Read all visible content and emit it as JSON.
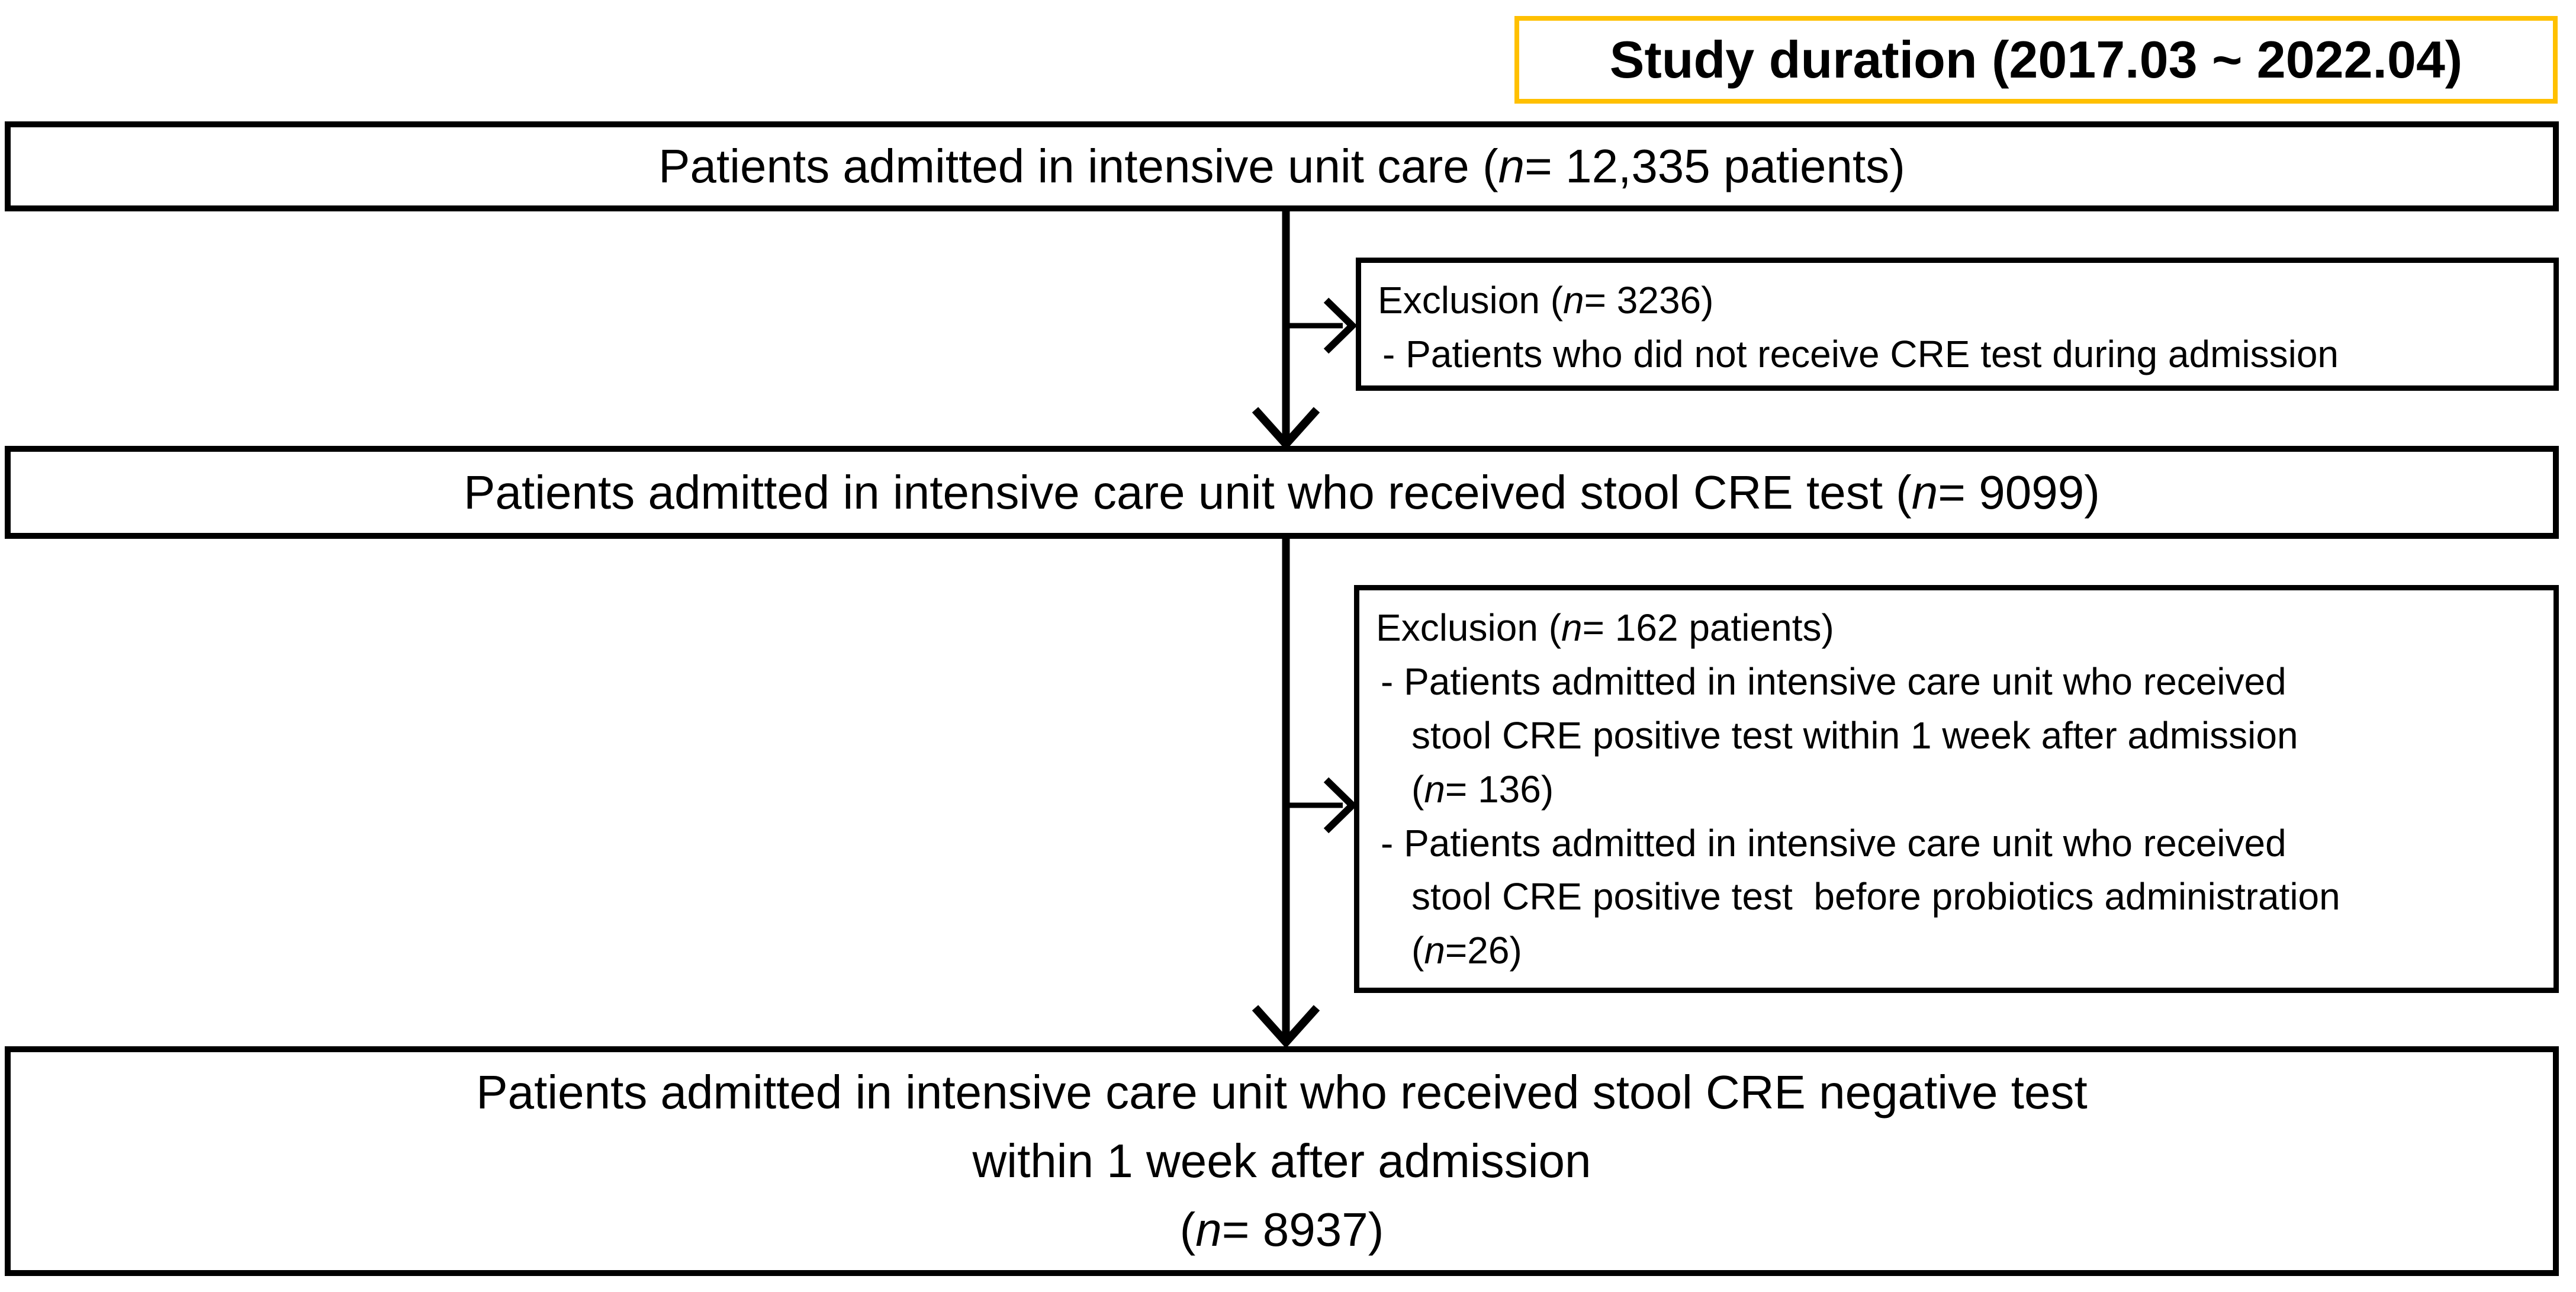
{
  "palette": {
    "accent_gold": "#FFC000",
    "ink_black": "#000000",
    "background": "#FFFFFF"
  },
  "duration_box": {
    "label": [
      {
        "t": "Study duration (2017.03 ~ 2022.04)",
        "b": true
      }
    ]
  },
  "box_admitted": {
    "label": [
      {
        "t": "Patients admitted in intensive unit care ("
      },
      {
        "t": "n",
        "i": true
      },
      {
        "t": "= 12,335 patients)"
      }
    ]
  },
  "exclusion_1": {
    "title": [
      {
        "t": "Exclusion ("
      },
      {
        "t": "n",
        "i": true
      },
      {
        "t": "= 3236)"
      }
    ],
    "items": [
      [
        {
          "t": "- Patients who did not receive CRE test during admission"
        }
      ]
    ]
  },
  "box_cre_test": {
    "label": [
      {
        "t": "Patients admitted in intensive care unit who received stool CRE test ("
      },
      {
        "t": "n",
        "i": true
      },
      {
        "t": "= 9099)"
      }
    ]
  },
  "exclusion_2": {
    "title": [
      {
        "t": "Exclusion ("
      },
      {
        "t": "n",
        "i": true
      },
      {
        "t": "= 162 patients)"
      }
    ],
    "items": [
      [
        {
          "t": "- Patients admitted in intensive care unit who received"
        },
        {
          "br": true
        },
        {
          "t": "stool CRE positive test within 1 week after admission"
        },
        {
          "br": true
        },
        {
          "t": "("
        },
        {
          "t": "n",
          "i": true
        },
        {
          "t": "= 136)"
        }
      ],
      [
        {
          "t": "- Patients admitted in intensive care unit who received"
        },
        {
          "br": true
        },
        {
          "t": "stool CRE positive test  before probiotics administration"
        },
        {
          "br": true
        },
        {
          "t": "("
        },
        {
          "t": "n",
          "i": true
        },
        {
          "t": "=26)"
        }
      ]
    ]
  },
  "box_negative": {
    "label": [
      {
        "t": "Patients admitted in intensive care unit who received stool CRE negative test"
      },
      {
        "br": true
      },
      {
        "t": "within 1 week after admission"
      },
      {
        "br": true
      },
      {
        "t": "("
      },
      {
        "t": "n",
        "i": true
      },
      {
        "t": "= 8937)"
      }
    ]
  }
}
